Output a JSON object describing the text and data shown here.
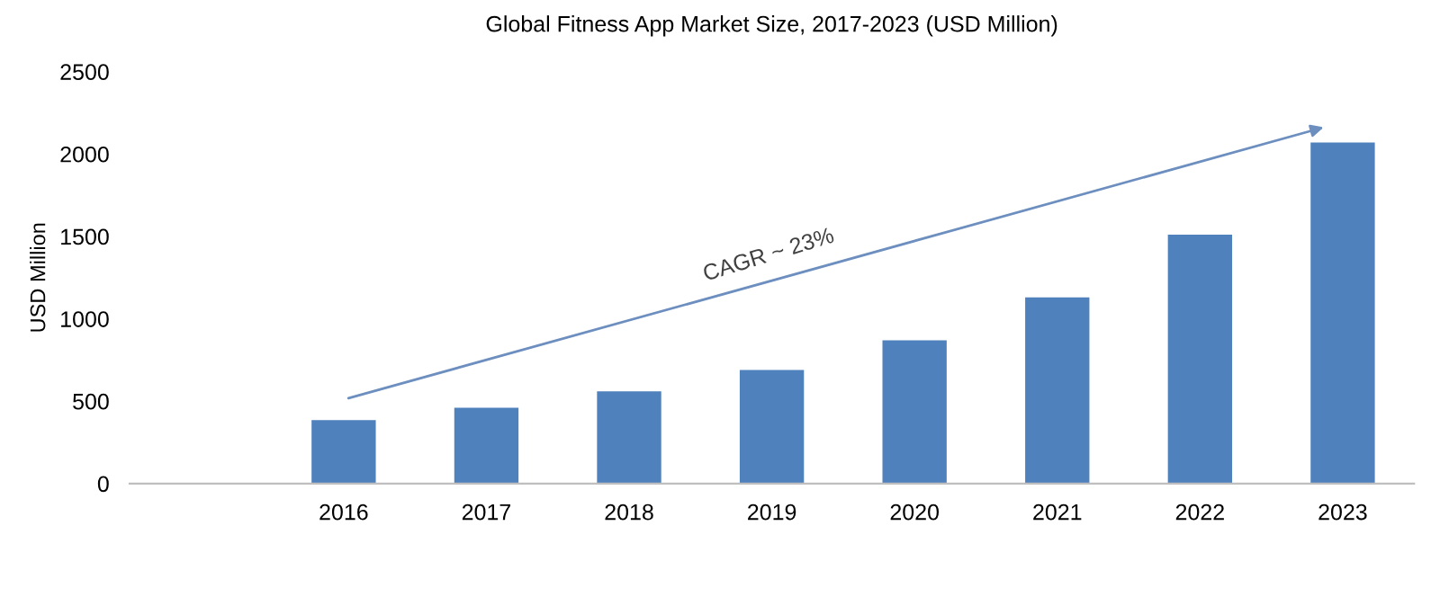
{
  "chart_data": {
    "type": "bar",
    "title": "Global Fitness App Market Size, 2017-2023 (USD Million)",
    "ylabel": "USD Million",
    "categories": [
      null,
      "2016",
      "2017",
      "2018",
      "2019",
      "2020",
      "2021",
      "2022",
      "2023"
    ],
    "values": [
      null,
      385,
      460,
      560,
      690,
      870,
      1130,
      1510,
      2070
    ],
    "color": "#4f81bd",
    "ylim": [
      0,
      2500
    ],
    "yticks": [
      0,
      500,
      1000,
      1500,
      2000,
      2500
    ],
    "grid": false,
    "legend": false,
    "annotations": [
      "CAGR ~ 23%"
    ]
  }
}
